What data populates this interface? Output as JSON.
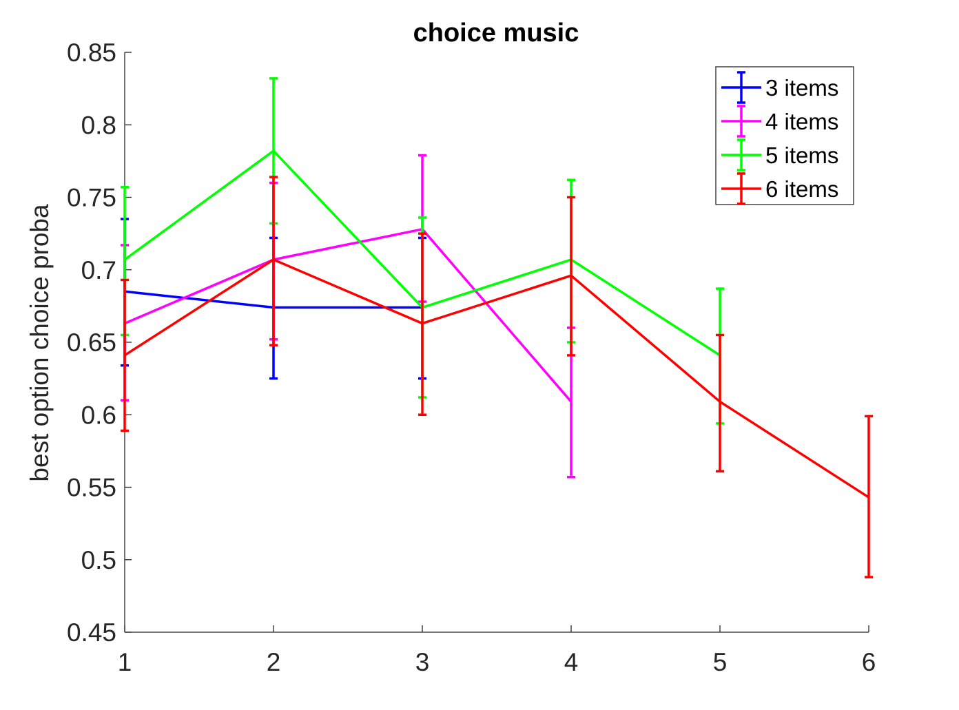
{
  "chart_data": {
    "type": "line",
    "title": "choice music",
    "xlabel": "",
    "ylabel": "best option choice proba",
    "xlim": [
      1,
      6
    ],
    "ylim": [
      0.45,
      0.85
    ],
    "x_ticks": [
      "1",
      "2",
      "3",
      "4",
      "5",
      "6"
    ],
    "y_ticks": [
      "0.45",
      "0.5",
      "0.55",
      "0.6",
      "0.65",
      "0.7",
      "0.75",
      "0.8",
      "0.85"
    ],
    "grid": false,
    "legend_position": "top-right",
    "series": [
      {
        "name": "3 items",
        "color": "#0000ff",
        "x": [
          1,
          2,
          3
        ],
        "y": [
          0.685,
          0.674,
          0.674
        ],
        "err_low": [
          0.634,
          0.625,
          0.625
        ],
        "err_high": [
          0.735,
          0.722,
          0.722
        ]
      },
      {
        "name": "4 items",
        "color": "#ff00ff",
        "x": [
          1,
          2,
          3,
          4
        ],
        "y": [
          0.663,
          0.707,
          0.728,
          0.609
        ],
        "err_low": [
          0.61,
          0.652,
          0.678,
          0.557
        ],
        "err_high": [
          0.717,
          0.76,
          0.779,
          0.66
        ]
      },
      {
        "name": "5 items",
        "color": "#00ff00",
        "x": [
          1,
          2,
          3,
          4,
          5
        ],
        "y": [
          0.707,
          0.782,
          0.674,
          0.707,
          0.641
        ],
        "err_low": [
          0.655,
          0.732,
          0.612,
          0.65,
          0.594
        ],
        "err_high": [
          0.757,
          0.832,
          0.736,
          0.762,
          0.687
        ]
      },
      {
        "name": "6 items",
        "color": "#ff0000",
        "x": [
          1,
          2,
          3,
          4,
          5,
          6
        ],
        "y": [
          0.641,
          0.707,
          0.663,
          0.696,
          0.609,
          0.543
        ],
        "err_low": [
          0.589,
          0.648,
          0.6,
          0.641,
          0.561,
          0.488
        ],
        "err_high": [
          0.693,
          0.764,
          0.725,
          0.75,
          0.655,
          0.599
        ]
      }
    ]
  }
}
